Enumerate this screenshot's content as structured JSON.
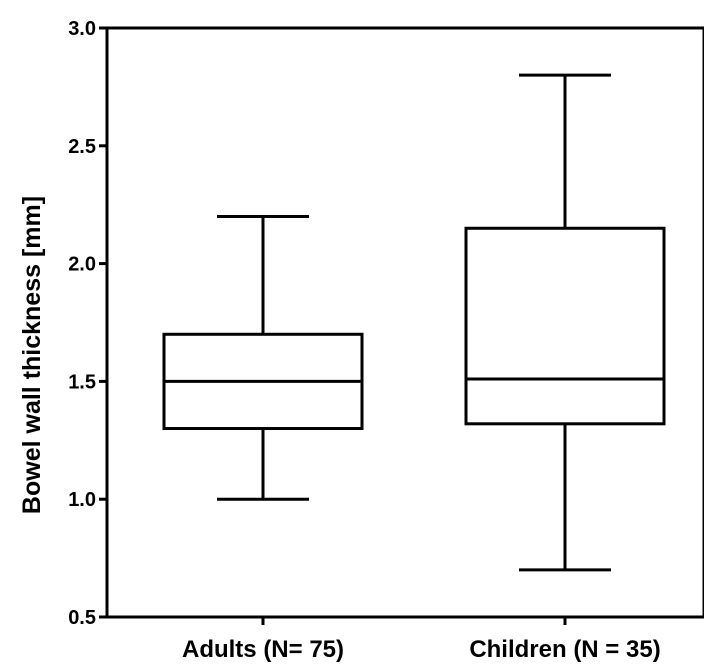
{
  "chart_data": {
    "type": "boxplot",
    "title": "",
    "xlabel": "",
    "ylabel": "Bowel wall thickness [mm]",
    "ylim": [
      0.5,
      3.0
    ],
    "yticks": [
      "0.5",
      "1.0",
      "1.5",
      "2.0",
      "2.5",
      "3.0"
    ],
    "grid": false,
    "categories": [
      "Adults (N= 75)",
      "Children (N = 35)"
    ],
    "boxes": [
      {
        "category": "Adults (N= 75)",
        "min": 1.0,
        "q1": 1.3,
        "median": 1.5,
        "q3": 1.7,
        "max": 2.2
      },
      {
        "category": "Children (N = 35)",
        "min": 0.7,
        "q1": 1.32,
        "median": 1.51,
        "q3": 2.15,
        "max": 2.8
      }
    ]
  }
}
